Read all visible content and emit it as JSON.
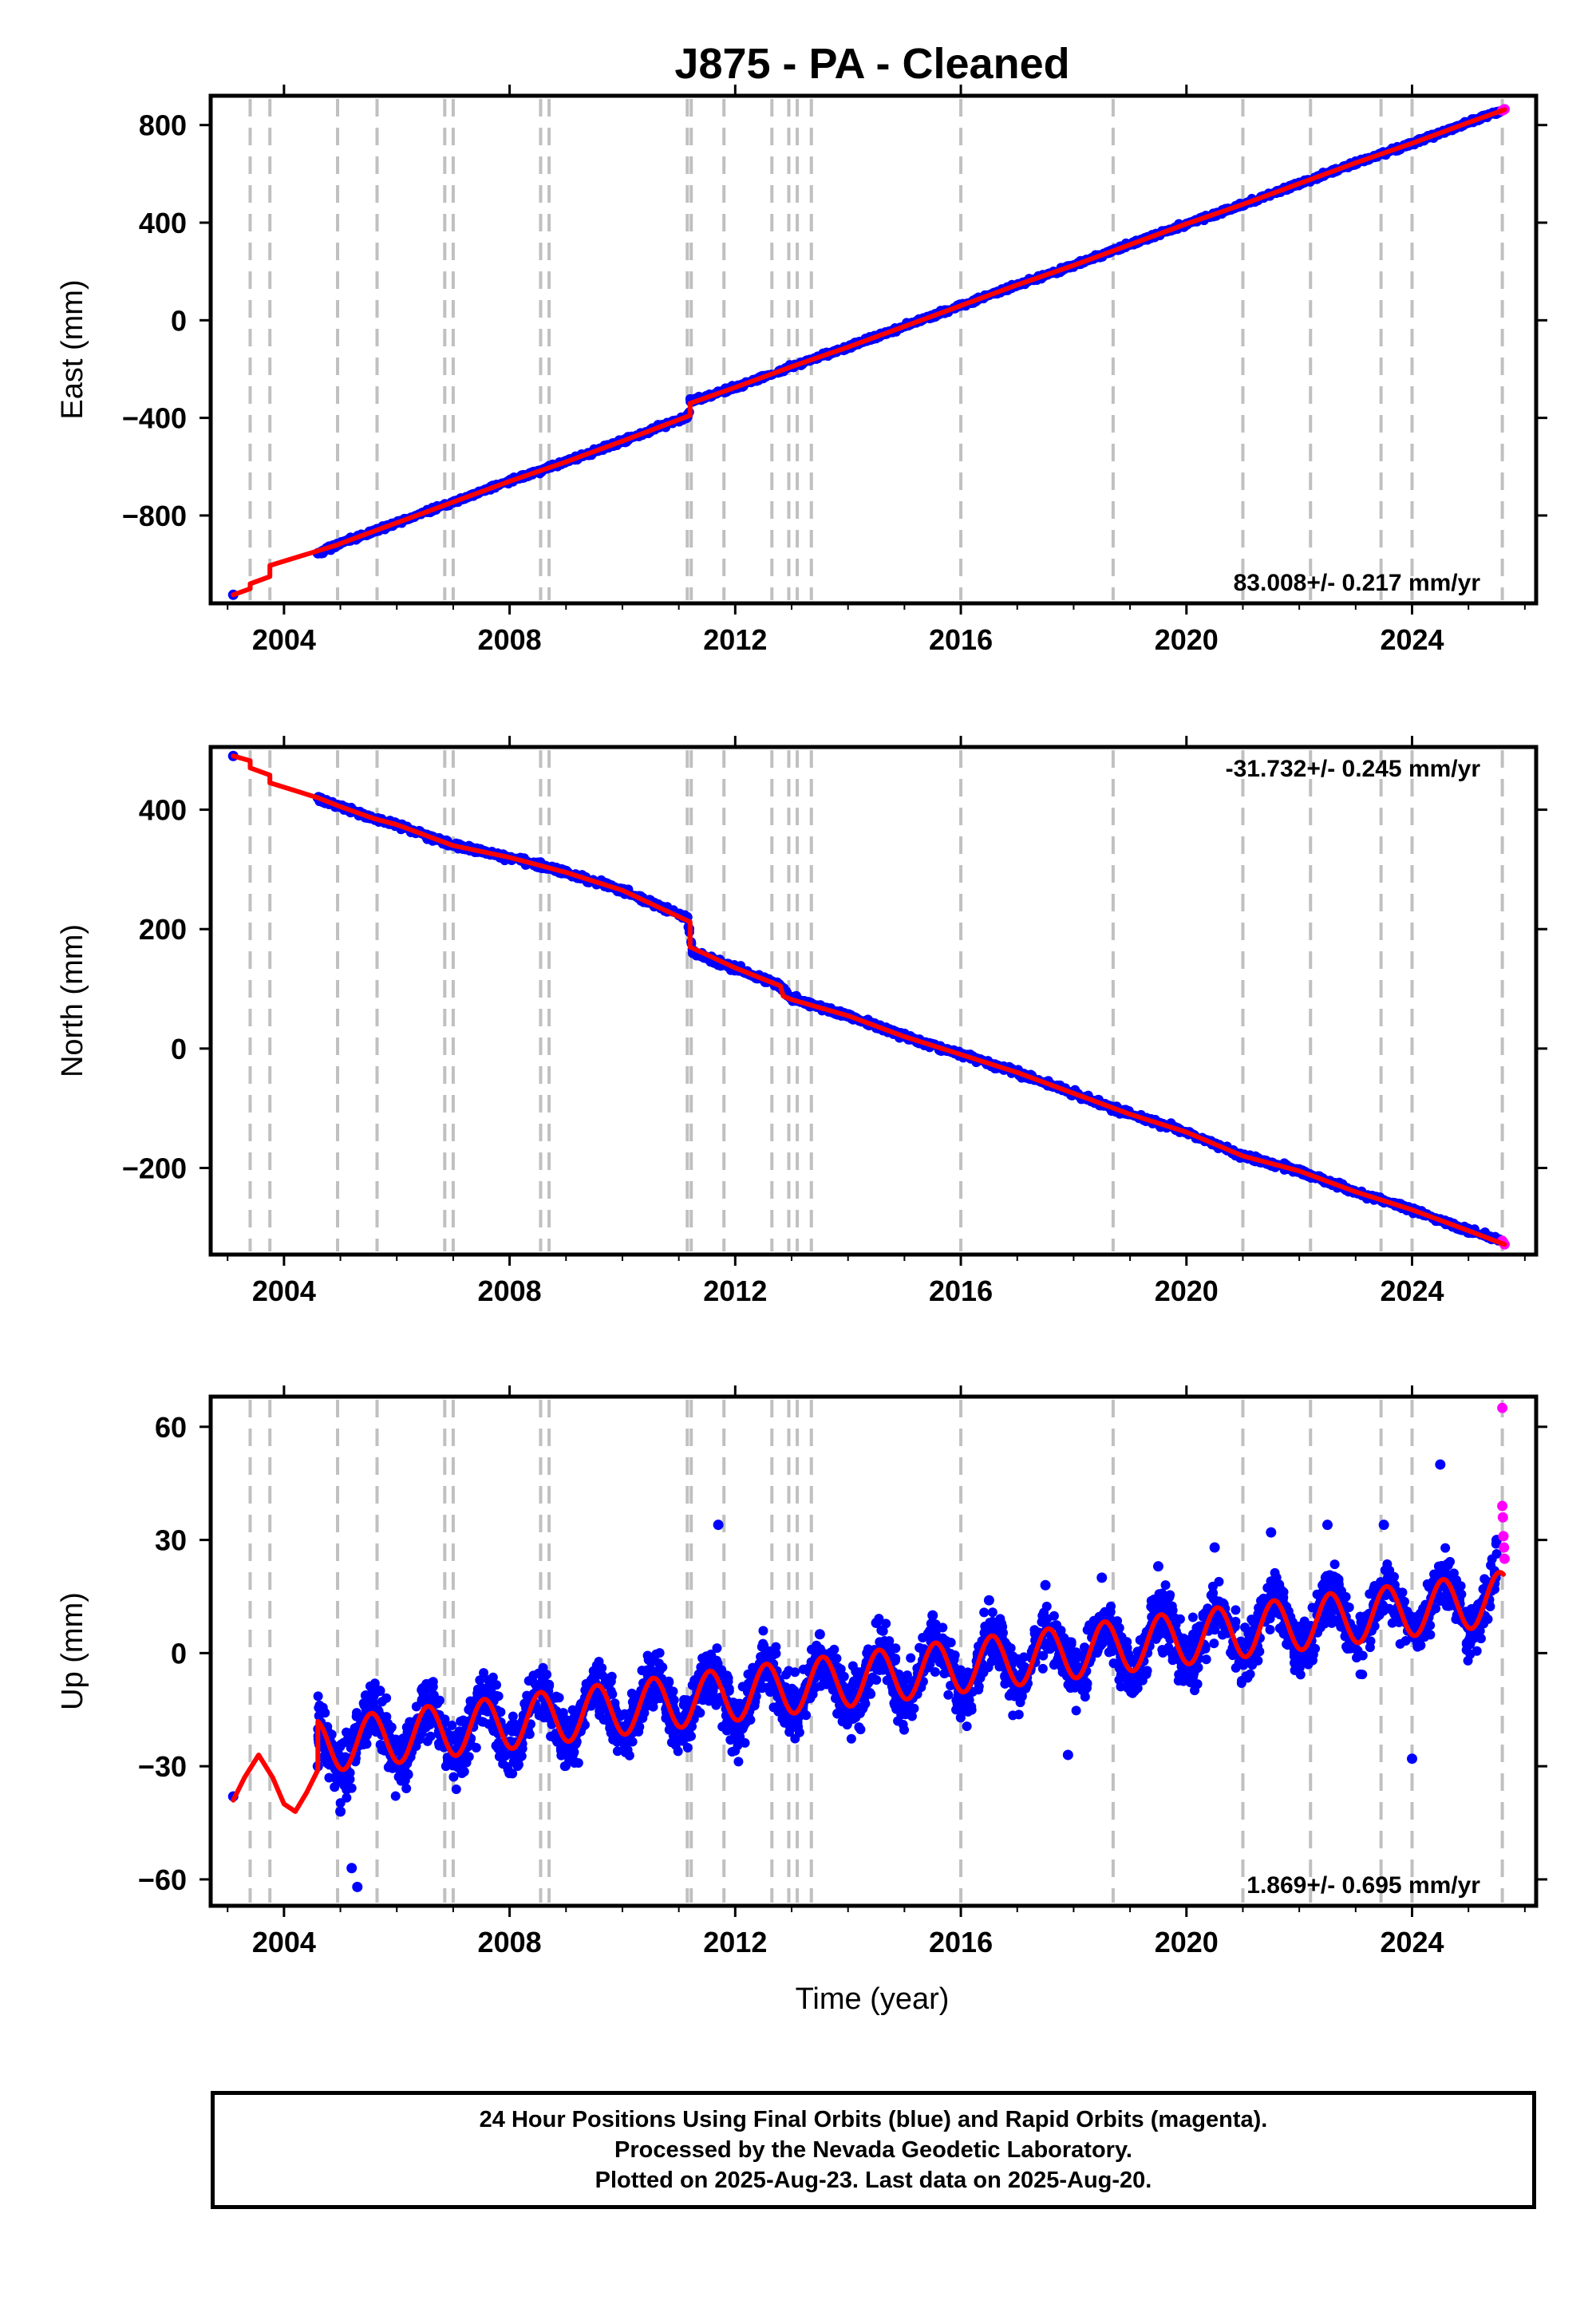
{
  "title": "J875  - PA - Cleaned",
  "colors": {
    "final_orbits": "#0000ff",
    "rapid_orbits": "#ff00ff",
    "model": "#ff0000",
    "event_lines": "#c0c0c0"
  },
  "footer": {
    "line1": "24 Hour Positions Using Final Orbits (blue) and Rapid Orbits (magenta).",
    "line2": "Processed by the Nevada Geodetic Laboratory.",
    "line3": "Plotted on 2025-Aug-23. Last data on 2025-Aug-20."
  },
  "chart_data": [
    {
      "type": "scatter",
      "ylabel": "East (mm)",
      "xlabel": "",
      "xlim": [
        2002.7,
        2026.2
      ],
      "ylim": [
        -1160,
        920
      ],
      "x_ticks": [
        2004,
        2008,
        2012,
        2016,
        2020,
        2024
      ],
      "y_ticks": [
        -800,
        -400,
        0,
        400,
        800
      ],
      "y_tick_labels": [
        "−800",
        "−400",
        "0",
        "400",
        "800"
      ],
      "rate_text": "83.008+/- 0.217 mm/yr",
      "event_lines": [
        2003.4,
        2003.75,
        2004.95,
        2005.65,
        2006.85,
        2007.0,
        2008.55,
        2008.7,
        2011.15,
        2011.22,
        2011.8,
        2012.65,
        2012.95,
        2013.1,
        2013.35,
        2016.0,
        2018.7,
        2021.0,
        2022.2,
        2023.45,
        2024.0,
        2025.6
      ],
      "series": [
        {
          "name": "Final Orbits",
          "kind": "points",
          "x": [
            2003.1,
            2004.6,
            2005.0,
            2006.0,
            2007.0,
            2008.0,
            2009.0,
            2010.0,
            2011.15,
            2011.25,
            2012.0,
            2013.0,
            2014.0,
            2015.0,
            2016.0,
            2017.0,
            2018.0,
            2019.0,
            2020.0,
            2021.0,
            2022.0,
            2023.0,
            2024.0,
            2025.0,
            2025.55
          ],
          "y": [
            -1125,
            -955,
            -915,
            -830,
            -745,
            -660,
            -580,
            -495,
            -395,
            -330,
            -275,
            -190,
            -110,
            -25,
            60,
            145,
            225,
            310,
            395,
            475,
            560,
            645,
            725,
            810,
            855
          ]
        },
        {
          "name": "Rapid Orbits",
          "kind": "points",
          "x": [
            2025.6,
            2025.62,
            2025.64
          ],
          "y": [
            860,
            862,
            865
          ]
        },
        {
          "name": "Model",
          "kind": "line",
          "x": [
            2003.1,
            2003.4,
            2003.4,
            2003.75,
            2003.75,
            2004.95,
            2005.0,
            2006.0,
            2007.0,
            2008.0,
            2009.0,
            2010.0,
            2011.2,
            2011.2,
            2012.0,
            2013.0,
            2014.0,
            2015.0,
            2016.0,
            2017.0,
            2018.0,
            2019.0,
            2020.0,
            2021.0,
            2022.0,
            2023.0,
            2024.0,
            2025.0,
            2025.64
          ],
          "y": [
            -1125,
            -1100,
            -1080,
            -1050,
            -1005,
            -920,
            -915,
            -830,
            -745,
            -660,
            -580,
            -495,
            -390,
            -340,
            -275,
            -190,
            -110,
            -25,
            60,
            145,
            225,
            310,
            395,
            475,
            560,
            645,
            725,
            810,
            863
          ]
        }
      ]
    },
    {
      "type": "scatter",
      "ylabel": "North (mm)",
      "xlabel": "",
      "xlim": [
        2002.7,
        2026.2
      ],
      "ylim": [
        -345,
        505
      ],
      "x_ticks": [
        2004,
        2008,
        2012,
        2016,
        2020,
        2024
      ],
      "y_ticks": [
        -200,
        0,
        200,
        400
      ],
      "y_tick_labels": [
        "−200",
        "0",
        "200",
        "400"
      ],
      "rate_text": "-31.732+/- 0.245 mm/yr",
      "event_lines": [
        2003.4,
        2003.75,
        2004.95,
        2005.65,
        2006.85,
        2007.0,
        2008.55,
        2008.7,
        2011.15,
        2011.22,
        2011.8,
        2012.65,
        2012.95,
        2013.1,
        2013.35,
        2016.0,
        2018.7,
        2021.0,
        2022.2,
        2023.45,
        2024.0,
        2025.6
      ],
      "series": [
        {
          "name": "Final Orbits",
          "kind": "points",
          "x": [
            2003.1,
            2004.6,
            2005.0,
            2005.6,
            2006.0,
            2007.0,
            2008.0,
            2009.0,
            2010.0,
            2010.8,
            2011.15,
            2011.25,
            2012.0,
            2012.8,
            2013.0,
            2014.0,
            2015.0,
            2016.0,
            2017.0,
            2018.0,
            2019.0,
            2020.0,
            2021.0,
            2022.0,
            2023.0,
            2024.0,
            2025.0,
            2025.55
          ],
          "y": [
            490,
            420,
            405,
            385,
            375,
            340,
            320,
            295,
            265,
            232,
            220,
            160,
            135,
            105,
            85,
            55,
            20,
            -10,
            -40,
            -75,
            -110,
            -140,
            -180,
            -205,
            -240,
            -270,
            -305,
            -320
          ]
        },
        {
          "name": "Rapid Orbits",
          "kind": "points",
          "x": [
            2025.6,
            2025.62,
            2025.64
          ],
          "y": [
            -322,
            -325,
            -328
          ]
        },
        {
          "name": "Model",
          "kind": "line",
          "x": [
            2003.1,
            2003.4,
            2003.4,
            2003.75,
            2003.75,
            2004.6,
            2005.0,
            2005.6,
            2006.0,
            2007.0,
            2008.0,
            2009.0,
            2010.0,
            2011.2,
            2011.2,
            2012.0,
            2012.8,
            2012.85,
            2013.0,
            2014.0,
            2015.0,
            2016.0,
            2017.0,
            2018.0,
            2019.0,
            2020.0,
            2021.0,
            2022.0,
            2023.0,
            2024.0,
            2025.0,
            2025.64
          ],
          "y": [
            490,
            482,
            470,
            458,
            445,
            420,
            405,
            385,
            375,
            340,
            320,
            295,
            265,
            212,
            170,
            135,
            105,
            88,
            82,
            55,
            20,
            -10,
            -40,
            -75,
            -110,
            -140,
            -180,
            -205,
            -240,
            -270,
            -305,
            -328
          ]
        }
      ]
    },
    {
      "type": "scatter",
      "ylabel": "Up (mm)",
      "xlabel": "Time (year)",
      "xlim": [
        2002.7,
        2026.2
      ],
      "ylim": [
        -67,
        68
      ],
      "x_ticks": [
        2004,
        2008,
        2012,
        2016,
        2020,
        2024
      ],
      "y_ticks": [
        -60,
        -30,
        0,
        30,
        60
      ],
      "y_tick_labels": [
        "−60",
        "−30",
        "0",
        "30",
        "60"
      ],
      "rate_text": "1.869+/- 0.695 mm/yr",
      "event_lines": [
        2003.4,
        2003.75,
        2004.95,
        2005.65,
        2006.85,
        2007.0,
        2008.55,
        2008.7,
        2011.15,
        2011.22,
        2011.8,
        2012.65,
        2012.95,
        2013.1,
        2013.35,
        2016.0,
        2018.7,
        2021.0,
        2022.2,
        2023.45,
        2024.0,
        2025.6
      ],
      "seasonal_model": {
        "start": 2004.6,
        "end": 2025.62,
        "base_at_2005": -24,
        "rate_mm_yr": 1.869,
        "amplitude_mm": 7,
        "peak_phase_yr": 0.55
      },
      "series": [
        {
          "name": "Final Orbits",
          "kind": "points",
          "x": [
            2003.1,
            2004.6,
            2005.0,
            2005.2,
            2005.3,
            2005.7,
            2006.5,
            2007.5,
            2008.5,
            2009.5,
            2010.5,
            2011.2,
            2011.7,
            2012.5,
            2013.5,
            2014.5,
            2015.5,
            2016.5,
            2017.5,
            2017.9,
            2018.5,
            2019.5,
            2020.5,
            2021.5,
            2022.5,
            2023.5,
            2024.0,
            2024.5,
            2025.5
          ],
          "y": [
            -38,
            -30,
            -42,
            -57,
            -62,
            -10,
            -12,
            -15,
            -10,
            -10,
            -8,
            -22,
            34,
            2,
            5,
            8,
            10,
            14,
            18,
            -27,
            20,
            23,
            28,
            32,
            34,
            34,
            -28,
            50,
            30
          ]
        },
        {
          "name": "Rapid Orbits",
          "kind": "points",
          "x": [
            2025.6,
            2025.6,
            2025.61,
            2025.62,
            2025.63,
            2025.64
          ],
          "y": [
            65,
            39,
            36,
            31,
            28,
            25
          ]
        },
        {
          "name": "Model",
          "kind": "line",
          "x": [
            2003.1,
            2003.3,
            2003.55,
            2003.8,
            2004.0,
            2004.2,
            2004.4,
            2004.6
          ],
          "y": [
            -39,
            -33,
            -27,
            -33,
            -40,
            -42,
            -37,
            -31
          ]
        }
      ]
    }
  ]
}
